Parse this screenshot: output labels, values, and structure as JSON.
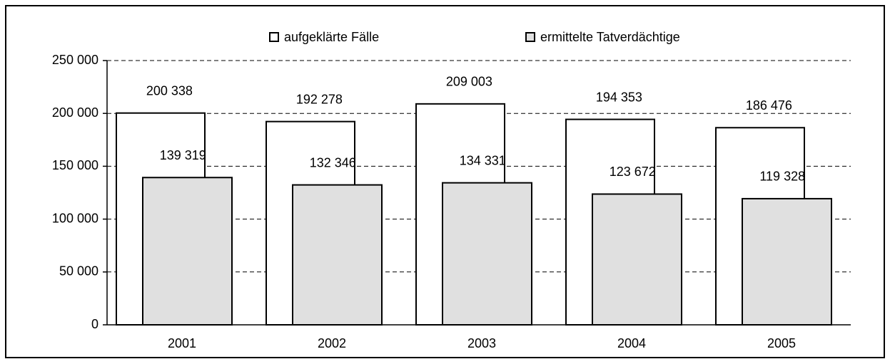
{
  "chart_data": {
    "type": "bar",
    "categories": [
      "2001",
      "2002",
      "2003",
      "2004",
      "2005"
    ],
    "series": [
      {
        "name": "aufgeklärte Fälle",
        "color": "#ffffff",
        "values": [
          200338,
          192278,
          209003,
          194353,
          186476
        ],
        "value_labels": [
          "200 338",
          "192 278",
          "209 003",
          "194 353",
          "186 476"
        ]
      },
      {
        "name": "ermittelte Tatverdächtige",
        "color": "#e0e0e0",
        "values": [
          139319,
          132346,
          134331,
          123672,
          119328
        ],
        "value_labels": [
          "139 319",
          "132 346",
          "134 331",
          "123 672",
          "119 328"
        ]
      }
    ],
    "ylim": [
      0,
      250000
    ],
    "yticks": [
      0,
      {
        "value": 50000,
        "label": "50 000"
      },
      {
        "value": 100000,
        "label": "100 000"
      },
      {
        "value": 150000,
        "label": "150 000"
      },
      {
        "value": 200000,
        "label": "200 000"
      },
      {
        "value": 250000,
        "label": "250 000"
      }
    ],
    "grid": true,
    "legend": "top"
  }
}
